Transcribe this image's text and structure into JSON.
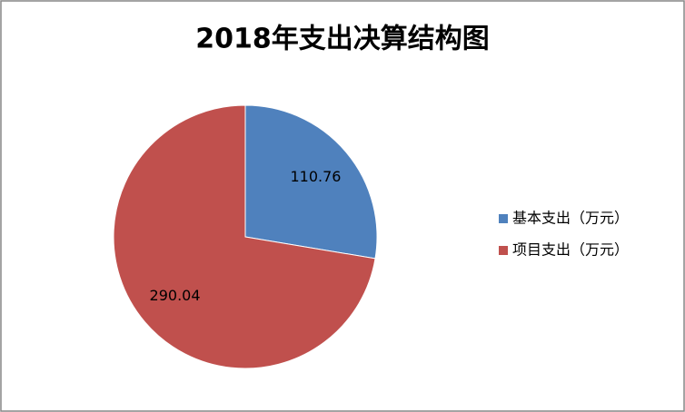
{
  "chart_data": {
    "type": "pie",
    "title": "2018年支出决算结构图",
    "categories": [
      "基本支出（万元）",
      "项目支出（万元）"
    ],
    "values": [
      110.76,
      290.04
    ],
    "colors": [
      "#4f81bd",
      "#c0504d"
    ],
    "legend": "right"
  }
}
